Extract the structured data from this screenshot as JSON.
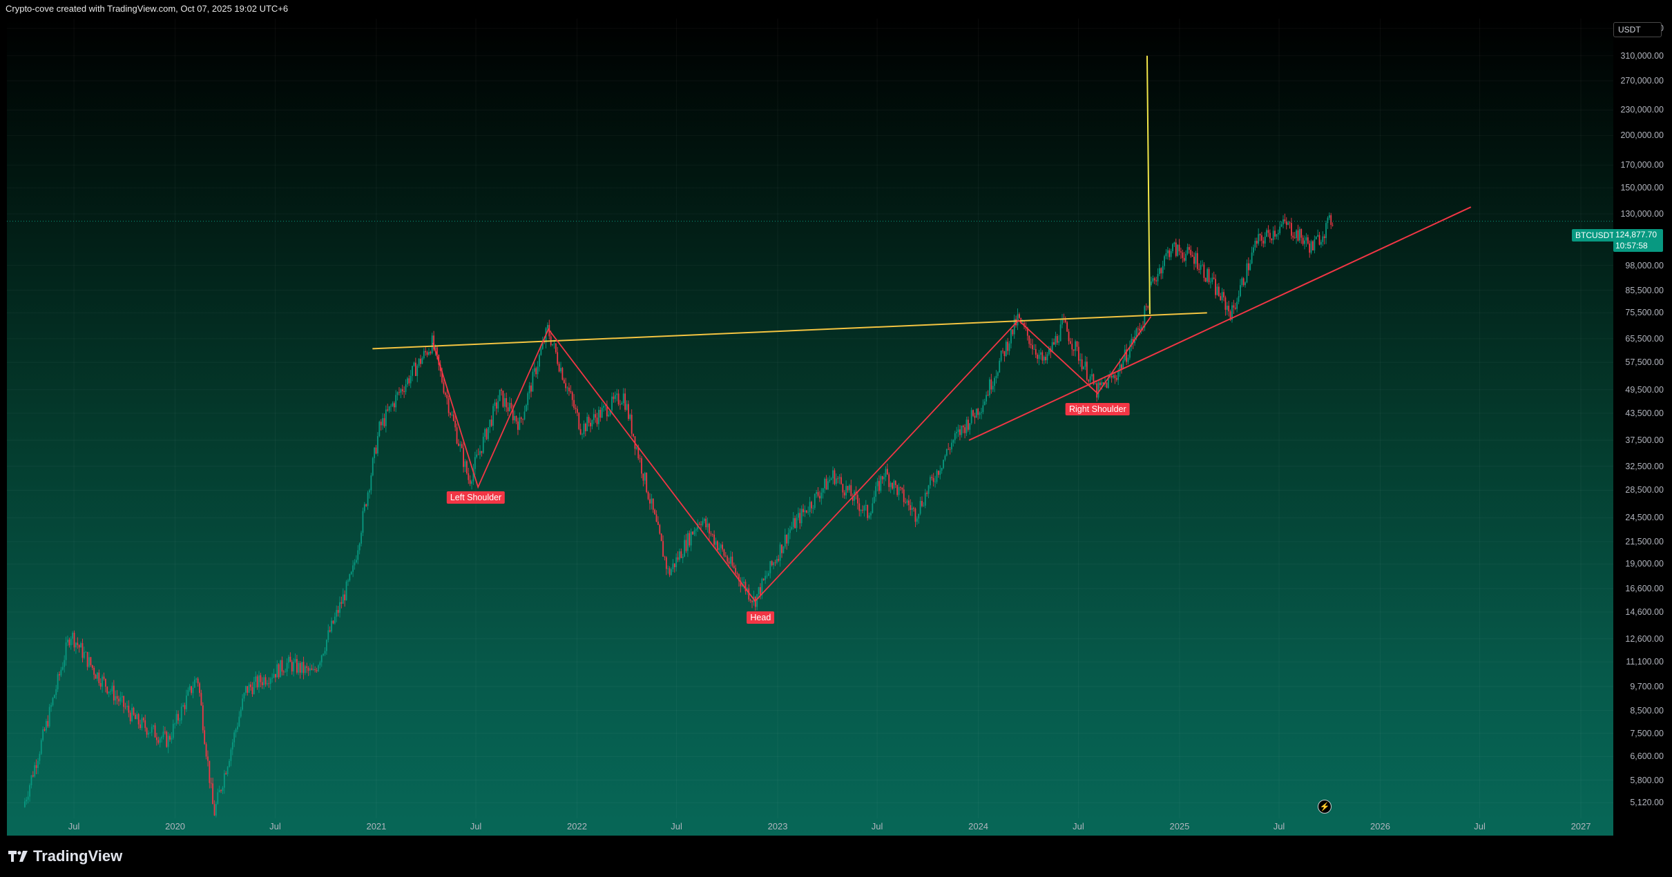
{
  "caption": "Crypto-cove created with TradingView.com, Oct 07, 2025 19:02 UTC+6",
  "currency": "USDT",
  "symbol": "BTCUSDT",
  "last_price": "124,877.70",
  "countdown": "10:57:58",
  "branding": "TradingView",
  "colors": {
    "up": "#089981",
    "down": "#f23645",
    "neckline": "#f5c542",
    "target": "#f2e74a",
    "trend": "#f23645"
  },
  "chart_data": {
    "type": "candlestick",
    "title": "",
    "scale": "log",
    "ylim": [
      4700,
      380000
    ],
    "x_start": "2019-03-01",
    "x_end": "2027-03-01",
    "price_ticks": [
      "360,000.00",
      "310,000.00",
      "270,000.00",
      "230,000.00",
      "200,000.00",
      "170,000.00",
      "150,000.00",
      "130,000.00",
      "98,000.00",
      "85,500.00",
      "75,500.00",
      "65,500.00",
      "57,500.00",
      "49,500.00",
      "43,500.00",
      "37,500.00",
      "32,500.00",
      "28,500.00",
      "24,500.00",
      "21,500.00",
      "19,000.00",
      "16,600.00",
      "14,600.00",
      "12,600.00",
      "11,100.00",
      "9,700.00",
      "8,500.00",
      "7,500.00",
      "6,600.00",
      "5,800.00",
      "5,120.00"
    ],
    "time_ticks": [
      {
        "label": "Jul",
        "date": "2019-07-01"
      },
      {
        "label": "2020",
        "date": "2020-01-01"
      },
      {
        "label": "Jul",
        "date": "2020-07-01"
      },
      {
        "label": "2021",
        "date": "2021-01-01"
      },
      {
        "label": "Jul",
        "date": "2021-07-01"
      },
      {
        "label": "2022",
        "date": "2022-01-01"
      },
      {
        "label": "Jul",
        "date": "2022-07-01"
      },
      {
        "label": "2023",
        "date": "2023-01-01"
      },
      {
        "label": "Jul",
        "date": "2023-07-01"
      },
      {
        "label": "2024",
        "date": "2024-01-01"
      },
      {
        "label": "Jul",
        "date": "2024-07-01"
      },
      {
        "label": "2025",
        "date": "2025-01-01"
      },
      {
        "label": "Jul",
        "date": "2025-07-01"
      },
      {
        "label": "2026",
        "date": "2026-01-01"
      },
      {
        "label": "Jul",
        "date": "2026-07-01"
      },
      {
        "label": "2027",
        "date": "2027-01-01"
      }
    ],
    "price_path": [
      [
        "2019-04-01",
        5000
      ],
      [
        "2019-05-15",
        8000
      ],
      [
        "2019-06-26",
        13000
      ],
      [
        "2019-08-10",
        10500
      ],
      [
        "2019-10-25",
        8000
      ],
      [
        "2019-12-20",
        7200
      ],
      [
        "2020-02-12",
        10300
      ],
      [
        "2020-03-13",
        4800
      ],
      [
        "2020-05-10",
        9500
      ],
      [
        "2020-07-25",
        11000
      ],
      [
        "2020-09-10",
        10400
      ],
      [
        "2020-11-20",
        18000
      ],
      [
        "2021-01-08",
        40000
      ],
      [
        "2021-02-10",
        48000
      ],
      [
        "2021-04-14",
        64000
      ],
      [
        "2021-06-20",
        30000
      ],
      [
        "2021-08-15",
        48000
      ],
      [
        "2021-09-20",
        41000
      ],
      [
        "2021-11-10",
        69000
      ],
      [
        "2022-01-10",
        40000
      ],
      [
        "2022-03-28",
        48000
      ],
      [
        "2022-06-18",
        18000
      ],
      [
        "2022-08-15",
        24500
      ],
      [
        "2022-11-21",
        15500
      ],
      [
        "2023-01-25",
        23000
      ],
      [
        "2023-04-14",
        31000
      ],
      [
        "2023-06-15",
        25000
      ],
      [
        "2023-07-15",
        31500
      ],
      [
        "2023-09-10",
        25000
      ],
      [
        "2023-11-15",
        37000
      ],
      [
        "2024-01-10",
        46000
      ],
      [
        "2024-03-14",
        73000
      ],
      [
        "2024-05-01",
        57000
      ],
      [
        "2024-06-05",
        71000
      ],
      [
        "2024-08-05",
        49000
      ],
      [
        "2024-09-10",
        54000
      ],
      [
        "2024-10-29",
        73000
      ],
      [
        "2024-11-12",
        88000
      ],
      [
        "2024-12-17",
        108000
      ],
      [
        "2025-02-01",
        102000
      ],
      [
        "2025-04-07",
        75000
      ],
      [
        "2025-05-22",
        111000
      ],
      [
        "2025-07-14",
        123000
      ],
      [
        "2025-09-01",
        108000
      ],
      [
        "2025-10-06",
        126000
      ]
    ],
    "annotations": {
      "labels": [
        {
          "text": "Left Shoulder",
          "date": "2021-07-01",
          "price": 29000
        },
        {
          "text": "Head",
          "date": "2022-12-01",
          "price": 15000
        },
        {
          "text": "Right Shoulder",
          "date": "2024-08-05",
          "price": 47000
        }
      ],
      "pattern_path": [
        [
          "2021-04-14",
          64000
        ],
        [
          "2021-07-05",
          29000
        ],
        [
          "2021-11-10",
          69000
        ],
        [
          "2022-11-21",
          15500
        ],
        [
          "2024-03-14",
          72500
        ],
        [
          "2024-08-05",
          48500
        ],
        [
          "2024-11-10",
          74000
        ]
      ],
      "neckline": [
        [
          "2020-12-25",
          62000
        ],
        [
          "2025-02-20",
          75500
        ]
      ],
      "target_line": [
        [
          "2024-11-08",
          75000
        ],
        [
          "2024-11-03",
          310000
        ]
      ],
      "trendline": [
        [
          "2023-12-15",
          37500
        ],
        [
          "2026-06-15",
          135000
        ]
      ],
      "current_price": 124877.7
    }
  }
}
